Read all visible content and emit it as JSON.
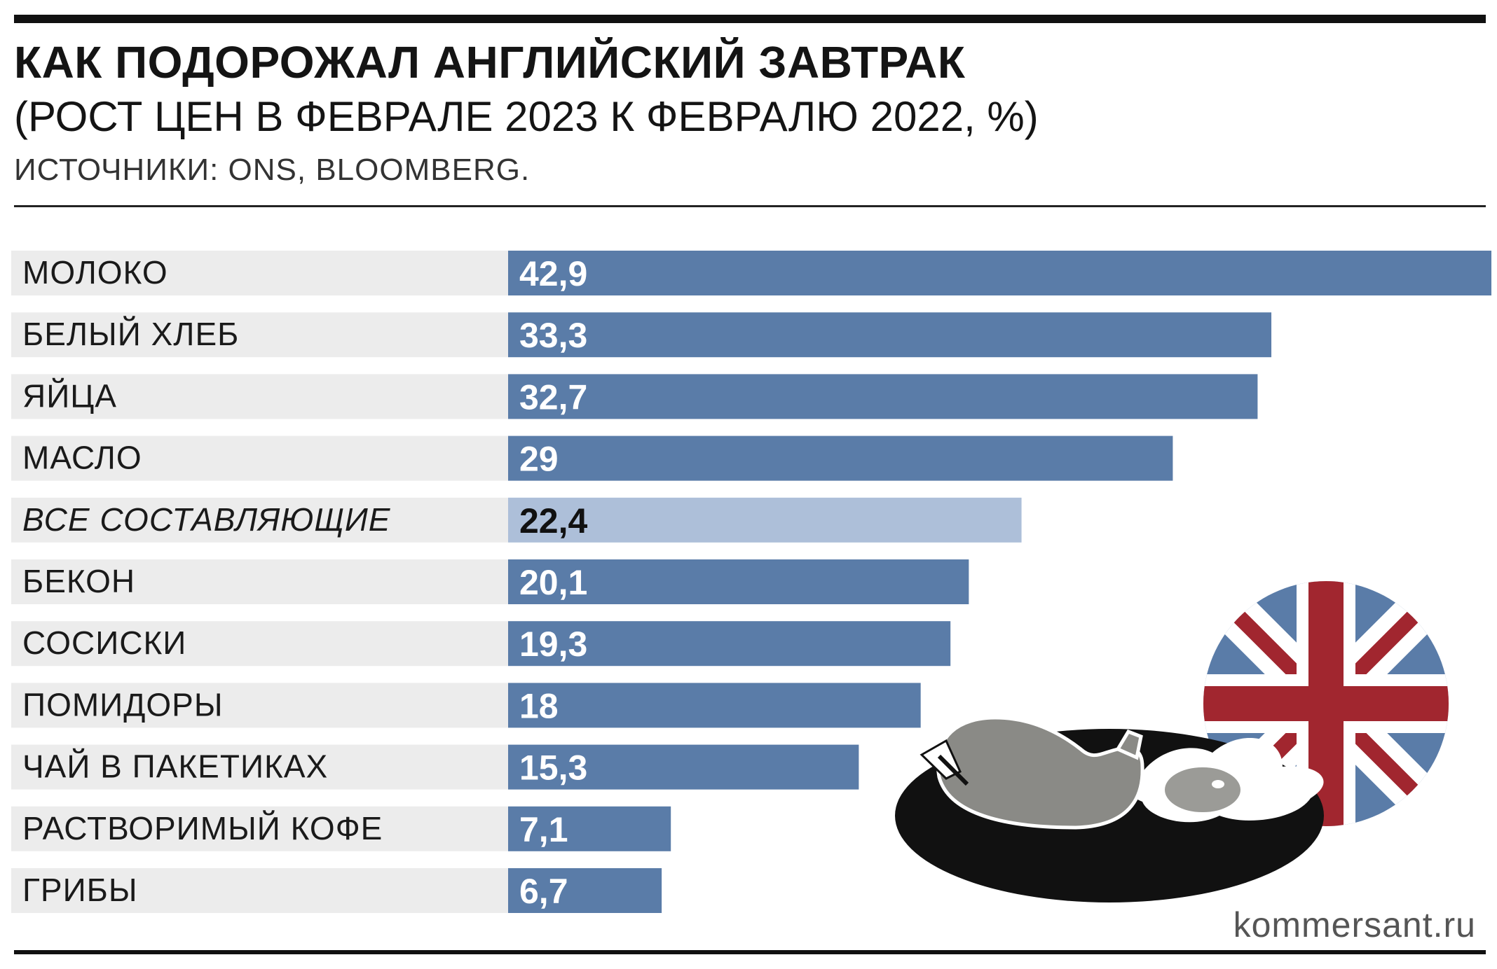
{
  "header": {
    "title": "КАК ПОДОРОЖАЛ АНГЛИЙСКИЙ ЗАВТРАК",
    "subtitle": "(РОСТ ЦЕН В ФЕВРАЛЕ 2023 К ФЕВРАЛЮ 2022, %)",
    "source": "ИСТОЧНИКИ: ONS, BLOOMBERG."
  },
  "footer": {
    "site": "kommersant.ru"
  },
  "chart_data": {
    "type": "bar",
    "orientation": "horizontal",
    "title": "КАК ПОДОРОЖАЛ АНГЛИЙСКИЙ ЗАВТРАК",
    "subtitle": "(РОСТ ЦЕН В ФЕВРАЛЕ 2023 К ФЕВРАЛЮ 2022, %)",
    "categories": [
      "МОЛОКО",
      "БЕЛЫЙ ХЛЕБ",
      "ЯЙЦА",
      "МАСЛО",
      "ВСЕ СОСТАВЛЯЮЩИЕ",
      "БЕКОН",
      "СОСИСКИ",
      "ПОМИДОРЫ",
      "ЧАЙ В ПАКЕТИКАХ",
      "РАСТВОРИМЫЙ КОФЕ",
      "ГРИБЫ"
    ],
    "values": [
      42.9,
      33.3,
      32.7,
      29,
      22.4,
      20.1,
      19.3,
      18,
      15.3,
      7.1,
      6.7
    ],
    "value_labels": [
      "42,9",
      "33,3",
      "32,7",
      "29",
      "22,4",
      "20,1",
      "19,3",
      "18",
      "15,3",
      "7,1",
      "6,7"
    ],
    "highlight_index": 4,
    "xlim": [
      0,
      42.9
    ],
    "grid": false,
    "legend": "none",
    "colors": {
      "bar": "#5a7ca8",
      "highlight_bar": "#adbfd9",
      "row_band": "#ececec",
      "label_on_bar": "#ffffff",
      "label_on_highlight": "#111111"
    }
  },
  "illustration": {
    "icons": [
      "union-jack-icon",
      "breakfast-plate-icon"
    ],
    "colors": {
      "flag_blue": "#5a7ca8",
      "flag_red": "#a1262f",
      "plate": "#111111",
      "food_gray": "#8a8a86"
    }
  }
}
